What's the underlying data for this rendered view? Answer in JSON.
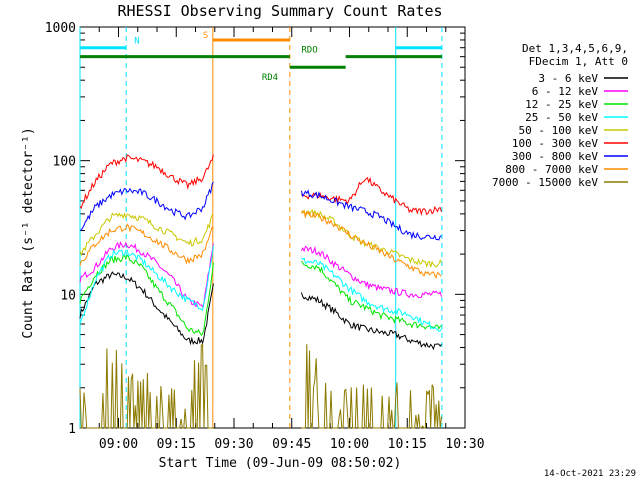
{
  "chart_data": {
    "type": "line",
    "title": "RHESSI Observing Summary Count Rates",
    "xlabel": "Start Time (09-Jun-09 08:50:02)",
    "ylabel": "Count Rate (s⁻¹ detector⁻¹)",
    "y_scale": "log",
    "ylim": [
      1,
      1000
    ],
    "x_unit": "minutes after 08:50:02",
    "xlim": [
      0,
      100
    ],
    "x_ticks": [
      "09:00",
      "09:15",
      "09:30",
      "09:45",
      "10:00",
      "10:15",
      "10:30"
    ],
    "y_ticks": [
      "1",
      "10",
      "100",
      "1000"
    ],
    "timestamp": "14-Oct-2021 23:29",
    "legend_header": [
      "Det 1,3,4,5,6,9,",
      "FDecim 1, Att 0"
    ],
    "legend_position": "right",
    "segments": [
      [
        0,
        54.5
      ],
      [
        57.5,
        94
      ]
    ],
    "markers": [
      {
        "label": "N",
        "color": "#00e5ff",
        "spans": [
          [
            0,
            12
          ],
          [
            82,
            94
          ]
        ],
        "level": 700
      },
      {
        "label": "S",
        "color": "#ff8c00",
        "spans": [
          [
            34.5,
            54.5
          ]
        ],
        "level": 800
      },
      {
        "label": "RDO",
        "color": "#008000",
        "spans": [
          [
            0,
            54.5
          ],
          [
            69,
            94
          ]
        ],
        "level": 600
      },
      {
        "label": "RD4",
        "color": "#008000",
        "spans": [
          [
            54.5,
            69
          ]
        ],
        "level": 500
      }
    ],
    "vertical_lines": [
      {
        "x": 0,
        "color": "#00e5ff",
        "style": "solid"
      },
      {
        "x": 12,
        "color": "#00e5ff",
        "style": "dashed"
      },
      {
        "x": 34.5,
        "color": "#ff8c00",
        "style": "solid"
      },
      {
        "x": 54.5,
        "color": "#ff8c00",
        "style": "dashed"
      },
      {
        "x": 82,
        "color": "#00e5ff",
        "style": "solid"
      },
      {
        "x": 94,
        "color": "#00e5ff",
        "style": "dashed"
      }
    ],
    "series": [
      {
        "name": "3 - 6 keV",
        "color": "#000000",
        "x": [
          0,
          4,
          8,
          12,
          16,
          20,
          24,
          28,
          32,
          35,
          57.5,
          62,
          66,
          70,
          74,
          78,
          82,
          86,
          90,
          94
        ],
        "values": [
          7,
          12,
          14,
          13.5,
          11,
          8,
          6,
          4.5,
          4.5,
          13,
          10,
          9,
          7.5,
          6,
          5.5,
          5.2,
          5,
          4.5,
          4.2,
          4
        ]
      },
      {
        "name": "6 - 12 keV",
        "color": "#ff00ff",
        "x": [
          0,
          4,
          8,
          12,
          16,
          20,
          24,
          28,
          32,
          35,
          57.5,
          62,
          66,
          70,
          74,
          78,
          82,
          86,
          90,
          94
        ],
        "values": [
          13,
          16,
          22,
          24,
          21,
          17,
          13,
          9,
          8,
          28,
          22,
          21,
          17,
          14,
          12,
          11,
          10.5,
          10,
          10,
          10
        ]
      },
      {
        "name": "12 - 25 keV",
        "color": "#00e600",
        "x": [
          0,
          4,
          8,
          12,
          16,
          20,
          24,
          28,
          32,
          35,
          57.5,
          62,
          66,
          70,
          74,
          78,
          82,
          86,
          90,
          94
        ],
        "values": [
          9,
          14,
          18,
          19,
          16,
          11,
          8,
          5.5,
          5,
          20,
          17,
          16,
          12,
          9,
          8,
          7,
          6.5,
          6,
          5.8,
          5.5
        ]
      },
      {
        "name": "25 - 50 keV",
        "color": "#00ffff",
        "x": [
          0,
          4,
          8,
          12,
          16,
          20,
          24,
          28,
          32,
          35,
          57.5,
          62,
          66,
          70,
          74,
          78,
          82,
          86,
          90,
          94
        ],
        "values": [
          6,
          13,
          20,
          21,
          18,
          14,
          11,
          9,
          8,
          26,
          18,
          17,
          14,
          11,
          9,
          8,
          7.5,
          7,
          6,
          5.5
        ]
      },
      {
        "name": "50 - 100 keV",
        "color": "#c8c800",
        "x": [
          0,
          4,
          8,
          12,
          16,
          20,
          24,
          28,
          32,
          35,
          57.5,
          62,
          66,
          70,
          74,
          78,
          82,
          86,
          90,
          94
        ],
        "values": [
          20,
          28,
          38,
          40,
          37,
          32,
          28,
          24,
          26,
          42,
          42,
          40,
          35,
          28,
          24,
          22,
          20,
          18,
          17,
          17
        ]
      },
      {
        "name": "100 - 300 keV",
        "color": "#ff0000",
        "x": [
          0,
          4,
          8,
          12,
          16,
          20,
          24,
          28,
          32,
          35,
          57.5,
          62,
          66,
          70,
          74,
          78,
          82,
          86,
          90,
          94
        ],
        "values": [
          45,
          70,
          95,
          105,
          100,
          90,
          75,
          65,
          75,
          110,
          55,
          55,
          52,
          50,
          75,
          60,
          50,
          42,
          42,
          44
        ]
      },
      {
        "name": "300 - 800 keV",
        "color": "#0000ff",
        "x": [
          0,
          4,
          8,
          12,
          16,
          20,
          24,
          28,
          32,
          35,
          57.5,
          62,
          66,
          70,
          74,
          78,
          82,
          86,
          90,
          94
        ],
        "values": [
          30,
          45,
          55,
          60,
          58,
          50,
          42,
          38,
          45,
          72,
          58,
          55,
          50,
          45,
          42,
          38,
          32,
          28,
          27,
          27
        ]
      },
      {
        "name": "800 - 7000 keV",
        "color": "#ff8c00",
        "x": [
          0,
          4,
          8,
          12,
          16,
          20,
          24,
          28,
          32,
          35,
          57.5,
          62,
          66,
          70,
          74,
          78,
          82,
          86,
          90,
          94
        ],
        "values": [
          17,
          24,
          30,
          32,
          29,
          25,
          21,
          18,
          20,
          35,
          40,
          38,
          34,
          28,
          24,
          21,
          18,
          16,
          14,
          14
        ]
      },
      {
        "name": "7000 - 15000 keV",
        "color": "#8c7a00",
        "x": [
          0,
          4,
          8,
          12,
          16,
          20,
          24,
          28,
          32,
          35,
          57.5,
          62,
          66,
          70,
          74,
          78,
          82,
          86,
          90,
          94
        ],
        "values": [
          1,
          1.4,
          2,
          1.6,
          1.3,
          1,
          1,
          1,
          2.5,
          1,
          2.2,
          1.6,
          1,
          1,
          1,
          1,
          1,
          1,
          1,
          1
        ]
      }
    ]
  }
}
